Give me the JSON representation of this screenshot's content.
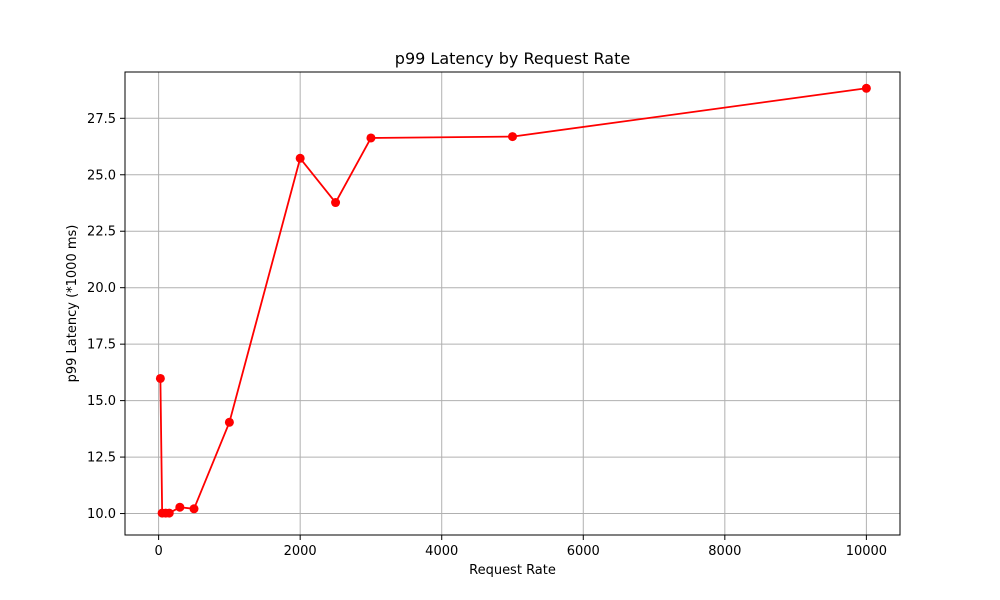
{
  "chart_data": {
    "type": "line",
    "title": "p99 Latency by Request Rate",
    "xlabel": "Request Rate",
    "ylabel": "p99 Latency (*1000 ms)",
    "xlim": [
      -475,
      10475
    ],
    "ylim": [
      9.05,
      29.55
    ],
    "x_ticks": [
      0,
      2000,
      4000,
      6000,
      8000,
      10000
    ],
    "x_tick_labels": [
      "0",
      "2000",
      "4000",
      "6000",
      "8000",
      "10000"
    ],
    "y_ticks": [
      10.0,
      12.5,
      15.0,
      17.5,
      20.0,
      22.5,
      25.0,
      27.5
    ],
    "y_tick_labels": [
      "10.0",
      "12.5",
      "15.0",
      "17.5",
      "20.0",
      "22.5",
      "25.0",
      "27.5"
    ],
    "grid": true,
    "series": [
      {
        "color": "#ff0000",
        "marker": "circle",
        "points": [
          {
            "x": 25,
            "y": 15.98
          },
          {
            "x": 50,
            "y": 10.02
          },
          {
            "x": 100,
            "y": 10.02
          },
          {
            "x": 150,
            "y": 10.02
          },
          {
            "x": 300,
            "y": 10.28
          },
          {
            "x": 500,
            "y": 10.21
          },
          {
            "x": 1000,
            "y": 14.04
          },
          {
            "x": 2000,
            "y": 25.73
          },
          {
            "x": 2500,
            "y": 23.77
          },
          {
            "x": 3000,
            "y": 26.63
          },
          {
            "x": 5000,
            "y": 26.69
          },
          {
            "x": 10000,
            "y": 28.83
          }
        ]
      }
    ]
  }
}
